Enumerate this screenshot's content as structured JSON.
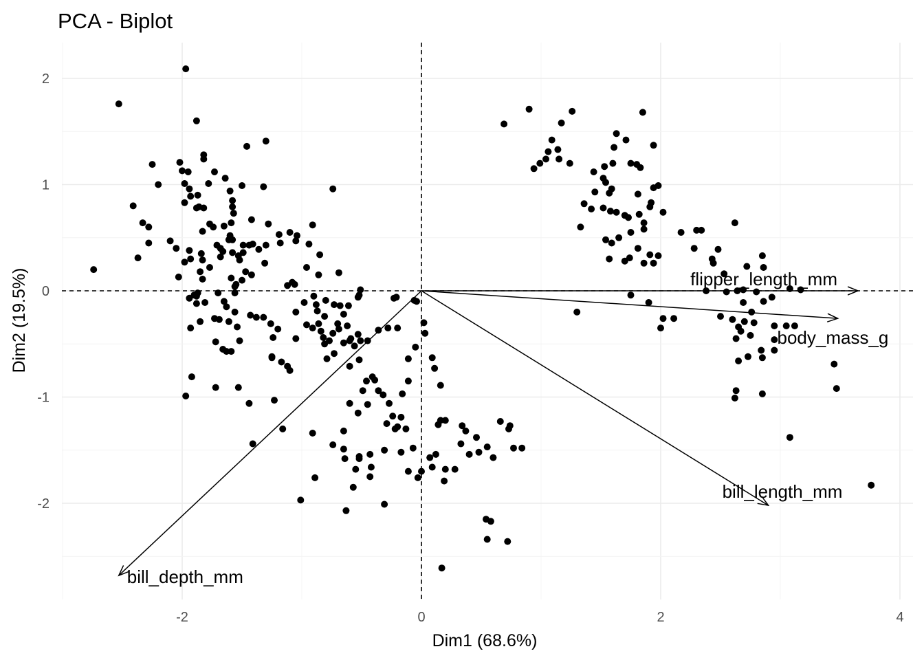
{
  "chart_data": {
    "type": "scatter",
    "title": "PCA - Biplot",
    "xlabel": "Dim1 (68.6%)",
    "ylabel": "Dim2 (19.5%)",
    "xlim": [
      -3.0,
      4.1
    ],
    "ylim": [
      -2.9,
      2.35
    ],
    "x_ticks": [
      -2,
      0,
      2,
      4
    ],
    "y_ticks": [
      -2,
      -1,
      0,
      1,
      2
    ],
    "x_tick_labels": [
      "-2",
      "0",
      "2",
      "4"
    ],
    "y_tick_labels": [
      "-2",
      "-1",
      "0",
      "1",
      "2"
    ],
    "grid": true,
    "reference_lines": {
      "x": 0,
      "y": 0,
      "style": "dashed"
    },
    "point_color": "#000000",
    "variables": [
      {
        "name": "flipper_length_mm",
        "x": 3.65,
        "y": 0.0
      },
      {
        "name": "body_mass_g",
        "x": 3.48,
        "y": -0.26
      },
      {
        "name": "bill_length_mm",
        "x": 2.9,
        "y": -2.02
      },
      {
        "name": "bill_depth_mm",
        "x": -2.53,
        "y": -2.68
      }
    ],
    "points": [
      [
        -1.97,
        2.09
      ],
      [
        -2.53,
        1.76
      ],
      [
        -1.88,
        1.6
      ],
      [
        -2.02,
        1.21
      ],
      [
        -2.25,
        1.19
      ],
      [
        -1.82,
        1.28
      ],
      [
        -1.82,
        1.24
      ],
      [
        -2.0,
        1.13
      ],
      [
        -1.95,
        1.12
      ],
      [
        -1.73,
        1.12
      ],
      [
        -1.3,
        1.41
      ],
      [
        -1.46,
        1.36
      ],
      [
        -2.2,
        1.0
      ],
      [
        -1.98,
        1.01
      ],
      [
        -1.94,
        0.96
      ],
      [
        -1.78,
        1.01
      ],
      [
        -1.64,
        1.06
      ],
      [
        -1.6,
        0.94
      ],
      [
        -1.5,
        0.99
      ],
      [
        -1.32,
        0.98
      ],
      [
        -0.74,
        0.96
      ],
      [
        -2.41,
        0.8
      ],
      [
        -1.93,
        0.89
      ],
      [
        -1.87,
        0.9
      ],
      [
        -1.86,
        0.79
      ],
      [
        -1.82,
        0.78
      ],
      [
        -1.88,
        0.78
      ],
      [
        -1.98,
        0.83
      ],
      [
        -1.58,
        0.85
      ],
      [
        -1.58,
        0.79
      ],
      [
        -1.57,
        0.73
      ],
      [
        -1.42,
        0.67
      ],
      [
        -1.59,
        0.64
      ],
      [
        -2.33,
        0.64
      ],
      [
        -2.28,
        0.6
      ],
      [
        -2.28,
        0.45
      ],
      [
        -2.37,
        0.31
      ],
      [
        -2.74,
        0.2
      ],
      [
        -2.1,
        0.47
      ],
      [
        -2.05,
        0.4
      ],
      [
        -1.98,
        0.27
      ],
      [
        -2.03,
        0.13
      ],
      [
        -1.77,
        0.63
      ],
      [
        -1.83,
        0.56
      ],
      [
        -1.74,
        0.6
      ],
      [
        -1.65,
        0.61
      ],
      [
        -1.6,
        0.52
      ],
      [
        -1.61,
        0.48
      ],
      [
        -1.58,
        0.48
      ],
      [
        -1.68,
        0.4
      ],
      [
        -1.49,
        0.43
      ],
      [
        -1.44,
        0.43
      ],
      [
        -1.41,
        0.44
      ],
      [
        -1.36,
        0.39
      ],
      [
        -1.3,
        0.43
      ],
      [
        -1.28,
        0.63
      ],
      [
        -1.19,
        0.53
      ],
      [
        -1.1,
        0.55
      ],
      [
        -1.18,
        0.45
      ],
      [
        -1.05,
        0.47
      ],
      [
        -1.04,
        0.52
      ],
      [
        -0.94,
        0.44
      ],
      [
        -0.85,
        0.34
      ],
      [
        -0.91,
        0.62
      ],
      [
        -1.83,
        0.29
      ],
      [
        -1.77,
        0.22
      ],
      [
        -1.66,
        0.37
      ],
      [
        -1.68,
        0.32
      ],
      [
        -1.58,
        0.36
      ],
      [
        -1.71,
        0.43
      ],
      [
        -1.85,
        0.18
      ],
      [
        -1.83,
        0.11
      ],
      [
        -1.94,
        0.38
      ],
      [
        -1.84,
        0.35
      ],
      [
        -1.93,
        0.3
      ],
      [
        -1.53,
        0.33
      ],
      [
        -1.52,
        0.29
      ],
      [
        -1.49,
        0.36
      ],
      [
        -1.47,
        0.18
      ],
      [
        -1.42,
        0.15
      ],
      [
        -1.31,
        0.26
      ],
      [
        -1.06,
        0.06
      ],
      [
        -1.08,
        0.08
      ],
      [
        -1.12,
        0.05
      ],
      [
        -0.86,
        0.15
      ],
      [
        -0.96,
        0.22
      ],
      [
        -0.69,
        0.17
      ],
      [
        -0.51,
        0.01
      ],
      [
        -0.52,
        -0.04
      ],
      [
        -0.53,
        -0.06
      ],
      [
        -0.61,
        -0.14
      ],
      [
        -0.68,
        -0.14
      ],
      [
        -0.73,
        -0.13
      ],
      [
        -0.65,
        -0.22
      ],
      [
        -0.7,
        -0.31
      ],
      [
        -0.8,
        -0.09
      ],
      [
        -0.88,
        -0.13
      ],
      [
        -0.9,
        -0.05
      ],
      [
        -0.87,
        -0.19
      ],
      [
        -0.98,
        -0.11
      ],
      [
        -1.05,
        -0.2
      ],
      [
        -1.43,
        -0.23
      ],
      [
        -1.38,
        -0.25
      ],
      [
        -1.32,
        -0.25
      ],
      [
        -1.26,
        -0.31
      ],
      [
        -1.2,
        -0.36
      ],
      [
        -1.24,
        -0.44
      ],
      [
        -1.25,
        -0.62
      ],
      [
        -1.05,
        -0.45
      ],
      [
        -0.96,
        -0.32
      ],
      [
        -0.91,
        -0.35
      ],
      [
        -0.86,
        -0.31
      ],
      [
        -0.84,
        -0.38
      ],
      [
        -0.82,
        -0.44
      ],
      [
        -0.81,
        -0.5
      ],
      [
        -0.77,
        -0.47
      ],
      [
        -0.81,
        -0.24
      ],
      [
        -0.74,
        -0.4
      ],
      [
        -0.69,
        -0.36
      ],
      [
        -0.62,
        -0.33
      ],
      [
        -0.65,
        -0.49
      ],
      [
        -0.59,
        -0.45
      ],
      [
        -0.6,
        -0.47
      ],
      [
        -0.53,
        -0.41
      ],
      [
        -0.56,
        -0.52
      ],
      [
        -0.51,
        -0.47
      ],
      [
        -0.45,
        -0.47
      ],
      [
        -0.36,
        -0.37
      ],
      [
        -0.28,
        -0.35
      ],
      [
        -0.2,
        -0.35
      ],
      [
        -0.21,
        -0.06
      ],
      [
        -0.23,
        -0.07
      ],
      [
        -0.06,
        -0.09
      ],
      [
        -0.04,
        -0.1
      ],
      [
        -1.56,
        -0.02
      ],
      [
        -1.59,
        0.12
      ],
      [
        -1.55,
        0.06
      ],
      [
        -1.5,
        0.1
      ],
      [
        -1.56,
        0.04
      ],
      [
        -1.7,
        -0.02
      ],
      [
        -1.65,
        -0.1
      ],
      [
        -1.63,
        -0.15
      ],
      [
        -1.56,
        -0.2
      ],
      [
        -1.88,
        -0.05
      ],
      [
        -1.87,
        -0.02
      ],
      [
        -1.9,
        -0.04
      ],
      [
        -1.94,
        -0.07
      ],
      [
        -1.81,
        -0.11
      ],
      [
        -1.88,
        -0.12
      ],
      [
        -1.85,
        -0.29
      ],
      [
        -1.93,
        -0.35
      ],
      [
        -1.73,
        -0.26
      ],
      [
        -1.69,
        -0.27
      ],
      [
        -1.61,
        -0.29
      ],
      [
        -1.54,
        -0.34
      ],
      [
        -1.52,
        -0.47
      ],
      [
        -1.72,
        -0.48
      ],
      [
        -1.66,
        -0.55
      ],
      [
        -1.63,
        -0.57
      ],
      [
        -1.59,
        -0.57
      ],
      [
        -1.25,
        -0.63
      ],
      [
        -1.17,
        -0.67
      ],
      [
        -1.12,
        -0.71
      ],
      [
        -1.1,
        -0.75
      ],
      [
        -0.73,
        -0.59
      ],
      [
        -0.79,
        -0.64
      ],
      [
        -0.52,
        -0.65
      ],
      [
        -0.6,
        -0.71
      ],
      [
        -0.46,
        -0.85
      ],
      [
        -0.41,
        -0.81
      ],
      [
        -0.39,
        -0.84
      ],
      [
        -0.36,
        -0.94
      ],
      [
        -0.49,
        -0.94
      ],
      [
        -0.6,
        -1.06
      ],
      [
        -0.53,
        -1.15
      ],
      [
        -0.45,
        -1.07
      ],
      [
        -0.32,
        -0.98
      ],
      [
        -0.24,
        -1.18
      ],
      [
        -0.29,
        -1.25
      ],
      [
        -0.22,
        -1.3
      ],
      [
        -0.17,
        -1.19
      ],
      [
        -0.13,
        -1.3
      ],
      [
        -0.07,
        -1.48
      ],
      [
        -0.2,
        -1.28
      ],
      [
        0.33,
        -1.44
      ],
      [
        0.12,
        -1.54
      ],
      [
        0.07,
        -1.57
      ],
      [
        0.09,
        -1.66
      ],
      [
        0.2,
        -1.68
      ],
      [
        0.28,
        -1.68
      ],
      [
        0.34,
        -1.27
      ],
      [
        0.37,
        -1.32
      ],
      [
        0.46,
        -1.38
      ],
      [
        0.2,
        -1.22
      ],
      [
        0.16,
        -1.22
      ],
      [
        0.14,
        -1.26
      ],
      [
        0.4,
        -1.54
      ],
      [
        0.48,
        -1.52
      ],
      [
        0.55,
        -1.47
      ],
      [
        0.66,
        -1.23
      ],
      [
        0.74,
        -1.27
      ],
      [
        0.73,
        -1.3
      ],
      [
        0.77,
        -1.48
      ],
      [
        0.84,
        -1.48
      ],
      [
        0.16,
        -0.89
      ],
      [
        0.11,
        -0.73
      ],
      [
        0.09,
        -0.63
      ],
      [
        0.03,
        -0.4
      ],
      [
        0.02,
        -0.3
      ],
      [
        -0.05,
        -0.53
      ],
      [
        -0.11,
        -0.64
      ],
      [
        -0.11,
        -0.85
      ],
      [
        -0.16,
        -0.97
      ],
      [
        -0.27,
        -1.06
      ],
      [
        -0.43,
        -1.54
      ],
      [
        -0.52,
        -1.58
      ],
      [
        -0.52,
        -1.56
      ],
      [
        -0.55,
        -1.68
      ],
      [
        -0.65,
        -1.49
      ],
      [
        -0.64,
        -1.58
      ],
      [
        -0.42,
        -1.66
      ],
      [
        -0.43,
        -1.75
      ],
      [
        -0.57,
        -1.85
      ],
      [
        -0.63,
        -2.07
      ],
      [
        -0.31,
        -2.01
      ],
      [
        -0.89,
        -1.76
      ],
      [
        -0.91,
        -1.34
      ],
      [
        -1.01,
        -1.97
      ],
      [
        -1.23,
        -1.03
      ],
      [
        -1.44,
        -1.06
      ],
      [
        -1.72,
        -0.91
      ],
      [
        -1.53,
        -0.91
      ],
      [
        -1.41,
        -1.44
      ],
      [
        -1.16,
        -1.3
      ],
      [
        -1.97,
        -0.99
      ],
      [
        -1.92,
        -0.81
      ],
      [
        0.54,
        -2.15
      ],
      [
        0.58,
        -2.17
      ],
      [
        0.55,
        -2.34
      ],
      [
        0.72,
        -2.36
      ],
      [
        0.17,
        -2.61
      ],
      [
        -0.74,
        -1.45
      ],
      [
        -0.65,
        -1.32
      ],
      [
        -0.17,
        -1.52
      ],
      [
        -0.31,
        -1.5
      ],
      [
        0.0,
        -1.7
      ],
      [
        -0.11,
        -1.7
      ],
      [
        0.19,
        -1.79
      ],
      [
        0.6,
        -1.57
      ],
      [
        -0.03,
        -1.76
      ],
      [
        0.9,
        1.71
      ],
      [
        1.26,
        1.69
      ],
      [
        1.85,
        1.68
      ],
      [
        0.69,
        1.57
      ],
      [
        1.17,
        1.58
      ],
      [
        1.63,
        1.48
      ],
      [
        1.09,
        1.42
      ],
      [
        1.71,
        1.42
      ],
      [
        1.14,
        1.33
      ],
      [
        1.06,
        1.31
      ],
      [
        1.94,
        1.37
      ],
      [
        1.61,
        1.35
      ],
      [
        1.04,
        1.24
      ],
      [
        1.15,
        1.24
      ],
      [
        0.99,
        1.2
      ],
      [
        1.24,
        1.2
      ],
      [
        0.94,
        1.15
      ],
      [
        1.44,
        1.12
      ],
      [
        1.53,
        1.17
      ],
      [
        1.6,
        1.2
      ],
      [
        1.75,
        1.2
      ],
      [
        1.8,
        1.19
      ],
      [
        1.83,
        1.16
      ],
      [
        1.52,
        1.06
      ],
      [
        1.54,
        1.02
      ],
      [
        1.59,
        0.96
      ],
      [
        1.45,
        0.93
      ],
      [
        1.57,
        0.92
      ],
      [
        1.81,
        0.91
      ],
      [
        1.94,
        0.97
      ],
      [
        1.98,
        0.99
      ],
      [
        1.36,
        0.82
      ],
      [
        1.42,
        0.77
      ],
      [
        1.52,
        0.78
      ],
      [
        1.58,
        0.75
      ],
      [
        1.63,
        0.74
      ],
      [
        1.7,
        0.71
      ],
      [
        1.73,
        0.69
      ],
      [
        1.82,
        0.72
      ],
      [
        1.86,
        0.64
      ],
      [
        1.91,
        0.79
      ],
      [
        1.92,
        0.83
      ],
      [
        2.02,
        0.74
      ],
      [
        1.86,
        0.58
      ],
      [
        1.75,
        0.55
      ],
      [
        1.65,
        0.5
      ],
      [
        1.59,
        0.45
      ],
      [
        1.54,
        0.48
      ],
      [
        1.33,
        0.6
      ],
      [
        1.81,
        0.4
      ],
      [
        1.91,
        0.34
      ],
      [
        1.98,
        0.33
      ],
      [
        1.94,
        0.26
      ],
      [
        1.86,
        0.26
      ],
      [
        1.57,
        0.3
      ],
      [
        1.7,
        0.28
      ],
      [
        1.74,
        0.31
      ],
      [
        2.17,
        0.55
      ],
      [
        2.3,
        0.57
      ],
      [
        2.34,
        0.57
      ],
      [
        2.28,
        0.4
      ],
      [
        2.62,
        0.64
      ],
      [
        2.48,
        0.39
      ],
      [
        2.72,
        0.23
      ],
      [
        2.85,
        0.33
      ],
      [
        2.43,
        0.3
      ],
      [
        2.44,
        0.26
      ],
      [
        2.86,
        0.22
      ],
      [
        2.69,
        0.01
      ],
      [
        3.08,
        0.02
      ],
      [
        3.17,
        0.01
      ],
      [
        2.55,
        -0.01
      ],
      [
        2.64,
        0.0
      ],
      [
        2.8,
        -0.01
      ],
      [
        2.93,
        -0.06
      ],
      [
        2.86,
        -0.1
      ],
      [
        2.69,
        -0.11
      ],
      [
        2.76,
        -0.2
      ],
      [
        2.5,
        -0.24
      ],
      [
        2.6,
        -0.27
      ],
      [
        2.7,
        -0.29
      ],
      [
        2.78,
        -0.3
      ],
      [
        2.95,
        -0.33
      ],
      [
        2.65,
        -0.34
      ],
      [
        2.75,
        -0.42
      ],
      [
        2.63,
        -0.45
      ],
      [
        2.84,
        -0.56
      ],
      [
        2.95,
        -0.46
      ],
      [
        2.95,
        -0.56
      ],
      [
        3.12,
        -0.33
      ],
      [
        3.45,
        -0.69
      ],
      [
        3.47,
        -0.92
      ],
      [
        3.08,
        -1.38
      ],
      [
        3.76,
        -1.83
      ],
      [
        2.85,
        -0.63
      ],
      [
        2.73,
        -0.62
      ],
      [
        2.65,
        -0.66
      ],
      [
        2.63,
        -0.94
      ],
      [
        2.62,
        -1.01
      ],
      [
        2.85,
        -0.97
      ],
      [
        2.67,
        -0.38
      ],
      [
        3.05,
        -0.33
      ],
      [
        2.02,
        -0.26
      ],
      [
        2.11,
        -0.26
      ],
      [
        1.75,
        -0.04
      ],
      [
        1.9,
        -0.11
      ],
      [
        2.0,
        -0.35
      ],
      [
        1.3,
        -0.2
      ],
      [
        2.53,
        0.16
      ],
      [
        2.38,
        0.0
      ]
    ]
  }
}
